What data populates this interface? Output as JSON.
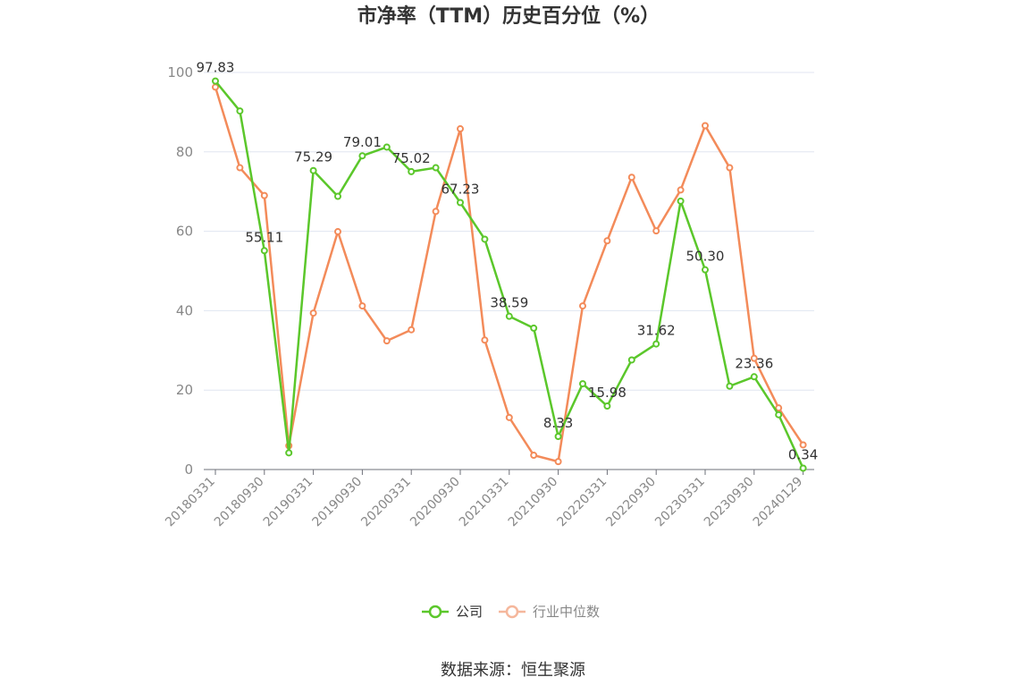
{
  "chart_data": {
    "type": "line",
    "title": "市净率（TTM）历史百分位（%）",
    "ylim": [
      0,
      100
    ],
    "y_ticks": [
      "0",
      "20",
      "40",
      "60",
      "80",
      "100"
    ],
    "x_tick_labels": [
      "20180331",
      "20180930",
      "20190331",
      "20190930",
      "20200331",
      "20200930",
      "20210331",
      "20210930",
      "20220331",
      "20220930",
      "20230331",
      "20230930",
      "20240129"
    ],
    "grid": true,
    "legend_position": "bottom",
    "series": [
      {
        "name": "公司",
        "color": "#5bc72b",
        "values": [
          97.83,
          90.3,
          55.11,
          4.2,
          75.29,
          68.8,
          79.01,
          81.2,
          75.02,
          76.0,
          67.23,
          58.0,
          38.59,
          35.6,
          8.33,
          21.6,
          15.98,
          27.6,
          31.62,
          67.6,
          50.3,
          21.0,
          23.36,
          13.8,
          0.34
        ],
        "labels": [
          "97.83",
          "",
          "55.11",
          "",
          "75.29",
          "",
          "79.01",
          "",
          "75.02",
          "",
          "67.23",
          "",
          "38.59",
          "",
          "8.33",
          "",
          "15.98",
          "",
          "31.62",
          "",
          "50.30",
          "",
          "23.36",
          "",
          "0.34"
        ]
      },
      {
        "name": "行业中位数",
        "color": "#f38b5a",
        "values": [
          96.3,
          76.0,
          69.0,
          6.0,
          39.4,
          59.9,
          41.2,
          32.4,
          35.2,
          65.0,
          85.8,
          32.6,
          13.1,
          3.6,
          2.0,
          41.2,
          57.6,
          73.6,
          60.1,
          70.4,
          86.6,
          76.0,
          28.0,
          15.5,
          6.2
        ]
      }
    ]
  },
  "source": "数据来源：恒生聚源"
}
